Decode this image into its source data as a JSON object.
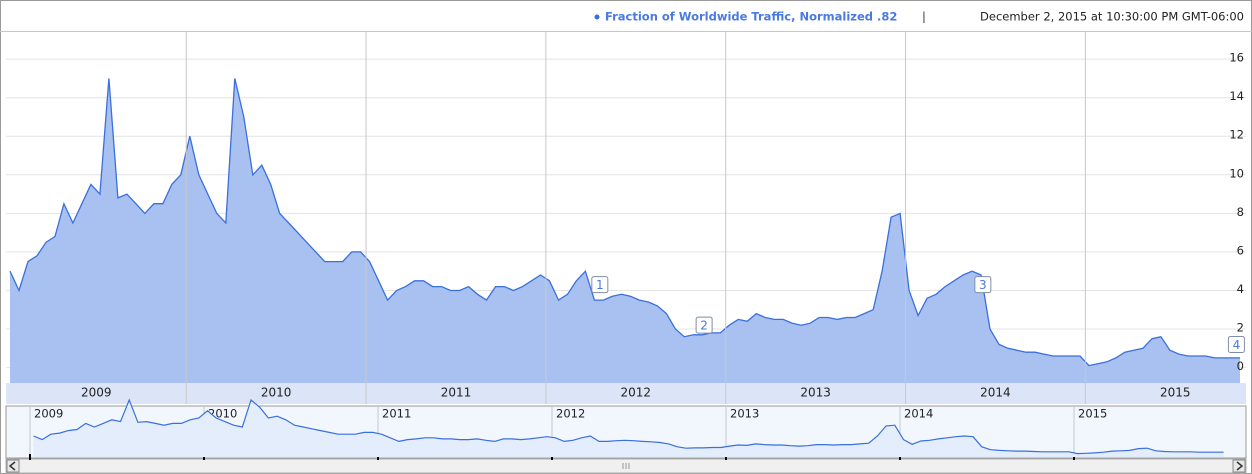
{
  "chart_data": {
    "type": "area",
    "legend": "Fraction of Worldwide Traffic, Normalized .82",
    "separator": "|",
    "timestamp": "December 2, 2015 at 10:30:00 PM GMT-06:00",
    "color": "#3a6fdc",
    "fill": "#a8c1f1",
    "grid": true,
    "xlim": [
      2009.02,
      2015.86
    ],
    "ylim": [
      -0.8,
      17.2
    ],
    "yticks": [
      0,
      2,
      4,
      6,
      8,
      10,
      12,
      14,
      16
    ],
    "xticks": [
      {
        "value": 2009.5,
        "label": "2009"
      },
      {
        "value": 2010.5,
        "label": "2010"
      },
      {
        "value": 2011.5,
        "label": "2011"
      },
      {
        "value": 2012.5,
        "label": "2012"
      },
      {
        "value": 2013.5,
        "label": "2013"
      },
      {
        "value": 2014.5,
        "label": "2014"
      },
      {
        "value": 2015.5,
        "label": "2015"
      }
    ],
    "x": [
      2009.02,
      2009.07,
      2009.12,
      2009.17,
      2009.22,
      2009.27,
      2009.32,
      2009.37,
      2009.42,
      2009.47,
      2009.52,
      2009.57,
      2009.62,
      2009.67,
      2009.72,
      2009.77,
      2009.82,
      2009.87,
      2009.92,
      2009.97,
      2010.02,
      2010.07,
      2010.12,
      2010.17,
      2010.22,
      2010.27,
      2010.32,
      2010.37,
      2010.42,
      2010.47,
      2010.52,
      2010.57,
      2010.62,
      2010.67,
      2010.72,
      2010.77,
      2010.82,
      2010.87,
      2010.92,
      2010.97,
      2011.02,
      2011.07,
      2011.12,
      2011.17,
      2011.22,
      2011.27,
      2011.32,
      2011.37,
      2011.42,
      2011.47,
      2011.52,
      2011.57,
      2011.62,
      2011.67,
      2011.72,
      2011.77,
      2011.82,
      2011.87,
      2011.92,
      2011.97,
      2012.02,
      2012.07,
      2012.12,
      2012.17,
      2012.22,
      2012.27,
      2012.32,
      2012.37,
      2012.42,
      2012.47,
      2012.52,
      2012.57,
      2012.62,
      2012.67,
      2012.72,
      2012.77,
      2012.82,
      2012.87,
      2012.92,
      2012.97,
      2013.02,
      2013.07,
      2013.12,
      2013.17,
      2013.22,
      2013.27,
      2013.32,
      2013.37,
      2013.42,
      2013.47,
      2013.52,
      2013.57,
      2013.62,
      2013.67,
      2013.72,
      2013.77,
      2013.82,
      2013.87,
      2013.92,
      2013.97,
      2014.02,
      2014.07,
      2014.12,
      2014.17,
      2014.22,
      2014.27,
      2014.32,
      2014.37,
      2014.42,
      2014.47,
      2014.52,
      2014.57,
      2014.62,
      2014.67,
      2014.72,
      2014.77,
      2014.82,
      2014.87,
      2014.92,
      2014.97,
      2015.02,
      2015.07,
      2015.12,
      2015.17,
      2015.22,
      2015.27,
      2015.32,
      2015.37,
      2015.42,
      2015.47,
      2015.52,
      2015.57,
      2015.62,
      2015.67,
      2015.72,
      2015.77,
      2015.82,
      2015.86
    ],
    "values": [
      5,
      4,
      5.5,
      5.8,
      6.5,
      6.8,
      8.5,
      7.5,
      8.5,
      9.5,
      9,
      15,
      8.8,
      9,
      8.5,
      8,
      8.5,
      8.5,
      9.5,
      10,
      12,
      10,
      9,
      8,
      7.5,
      15,
      13,
      10,
      10.5,
      9.5,
      8,
      7.5,
      7,
      6.5,
      6,
      5.5,
      5.5,
      5.5,
      6,
      6,
      5.5,
      4.5,
      3.5,
      4,
      4.2,
      4.5,
      4.5,
      4.2,
      4.2,
      4,
      4,
      4.2,
      3.8,
      3.5,
      4.2,
      4.2,
      4,
      4.2,
      4.5,
      4.8,
      4.5,
      3.5,
      3.8,
      4.5,
      5,
      3.5,
      3.5,
      3.7,
      3.8,
      3.7,
      3.5,
      3.4,
      3.2,
      2.8,
      2.0,
      1.6,
      1.7,
      1.7,
      1.8,
      1.8,
      2.2,
      2.5,
      2.4,
      2.8,
      2.6,
      2.5,
      2.5,
      2.3,
      2.2,
      2.3,
      2.6,
      2.6,
      2.5,
      2.6,
      2.6,
      2.8,
      3.0,
      5,
      7.8,
      8,
      4,
      2.7,
      3.6,
      3.8,
      4.2,
      4.5,
      4.8,
      5,
      4.8,
      2,
      1.2,
      1.0,
      0.9,
      0.8,
      0.8,
      0.7,
      0.6,
      0.6,
      0.6,
      0.6,
      0.1,
      0.2,
      0.3,
      0.5,
      0.8,
      0.9,
      1.0,
      1.5,
      1.6,
      0.9,
      0.7,
      0.6,
      0.6,
      0.6,
      0.5,
      0.5,
      0.5,
      0.5
    ],
    "annotations": [
      {
        "label": "1",
        "x": 2012.3,
        "y": 4.3
      },
      {
        "label": "2",
        "x": 2012.88,
        "y": 2.2
      },
      {
        "label": "3",
        "x": 2014.43,
        "y": 4.3
      },
      {
        "label": "4",
        "x": 2015.84,
        "y": 1.2
      }
    ]
  }
}
